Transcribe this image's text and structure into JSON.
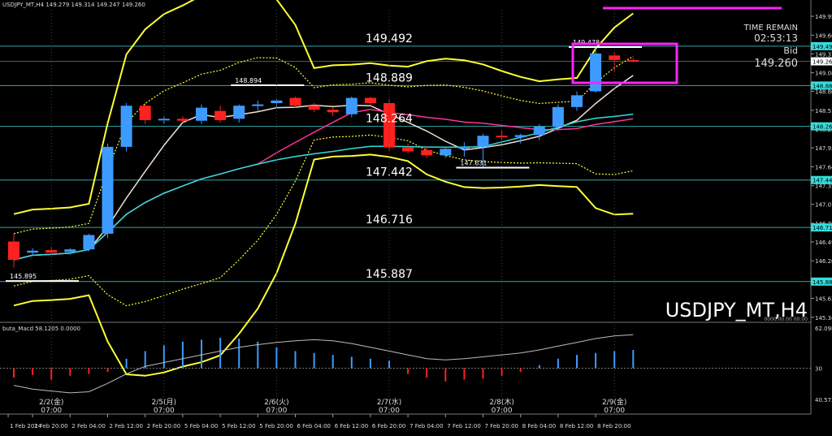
{
  "window_title": "USDJPY_MT,H4   149.279 149.314 149.247 149.260",
  "symbol_label": "USDJPY_MT,H4",
  "time_remain_label": "TIME REMAIN",
  "time_remain_value": "02:53:13",
  "bid_label": "Bid",
  "bid_value": "149.260",
  "bottom_info": "0000.00.00 00:00",
  "colors": {
    "bull": "#3d9bff",
    "bear": "#ff2020",
    "band": "#ffff33",
    "cyan_line": "#33dddd",
    "pink_ma": "#ff3399",
    "white_ma": "#f0e0d0",
    "box": "#ff22ff",
    "level_line": "#2fa8a8"
  },
  "price_axis": [
    "149.950",
    "149.660",
    "149.375",
    "149.085",
    "148.800",
    "148.510",
    "148.220",
    "147.935",
    "147.645",
    "147.355",
    "147.070",
    "146.780",
    "146.495",
    "146.205",
    "145.920",
    "145.630",
    "145.340"
  ],
  "price_tags": [
    {
      "text": "149.492",
      "price": 149.492
    },
    {
      "text": "149.260",
      "price": 149.26
    },
    {
      "text": "148.889",
      "price": 148.889
    },
    {
      "text": "148.264",
      "price": 148.264
    },
    {
      "text": "147.442",
      "price": 147.442
    },
    {
      "text": "146.716",
      "price": 146.716
    },
    {
      "text": "145.887",
      "price": 145.887
    }
  ],
  "level_labels": [
    {
      "text": "149.492",
      "price": 149.492
    },
    {
      "text": "148.889",
      "price": 148.889
    },
    {
      "text": "148.264",
      "price": 148.264
    },
    {
      "text": "147.442",
      "price": 147.442
    },
    {
      "text": "146.716",
      "price": 146.716
    },
    {
      "text": "145.887",
      "price": 145.887
    }
  ],
  "swing_labels": [
    {
      "text": "149.478",
      "price": 149.478,
      "bar": 30
    },
    {
      "text": "148.894",
      "price": 148.894,
      "bar": 12
    },
    {
      "text": "147.631",
      "price": 147.631,
      "bar": 24
    },
    {
      "text": "145.895",
      "price": 145.895,
      "bar": 0
    }
  ],
  "day_labels": [
    {
      "time": "07:00",
      "date": "2/2(金)",
      "bar": 2
    },
    {
      "time": "07:00",
      "date": "2/5(月)",
      "bar": 8
    },
    {
      "time": "07:00",
      "date": "2/6(火)",
      "bar": 14
    },
    {
      "time": "07:00",
      "date": "2/7(水)",
      "bar": 20
    },
    {
      "time": "07:00",
      "date": "2/8(木)",
      "bar": 26
    },
    {
      "time": "07:00",
      "date": "2/9(金)",
      "bar": 32
    }
  ],
  "time_axis": [
    {
      "text": "1 Feb 2024",
      "bar": -0.3
    },
    {
      "text": "1 Feb 20:00",
      "bar": 1
    },
    {
      "text": "2 Feb 04:00",
      "bar": 3
    },
    {
      "text": "2 Feb 12:00",
      "bar": 5
    },
    {
      "text": "2 Feb 20:00",
      "bar": 7
    },
    {
      "text": "5 Feb 04:00",
      "bar": 9
    },
    {
      "text": "5 Feb 12:00",
      "bar": 11
    },
    {
      "text": "5 Feb 20:00",
      "bar": 13
    },
    {
      "text": "6 Feb 04:00",
      "bar": 15
    },
    {
      "text": "6 Feb 12:00",
      "bar": 17
    },
    {
      "text": "6 Feb 20:00",
      "bar": 19
    },
    {
      "text": "7 Feb 04:00",
      "bar": 21
    },
    {
      "text": "7 Feb 12:00",
      "bar": 23
    },
    {
      "text": "7 Feb 20:00",
      "bar": 25
    },
    {
      "text": "8 Feb 04:00",
      "bar": 27
    },
    {
      "text": "8 Feb 12:00",
      "bar": 29
    },
    {
      "text": "8 Feb 20:00",
      "bar": 31
    }
  ],
  "chart_data": {
    "type": "candlestick",
    "title": "USDJPY_MT,H4",
    "ylim": [
      145.3,
      150.05
    ],
    "candles": [
      {
        "o": 146.5,
        "h": 146.62,
        "l": 146.1,
        "c": 146.22
      },
      {
        "o": 146.33,
        "h": 146.4,
        "l": 146.28,
        "c": 146.36
      },
      {
        "o": 146.37,
        "h": 146.42,
        "l": 146.3,
        "c": 146.33
      },
      {
        "o": 146.34,
        "h": 146.4,
        "l": 146.3,
        "c": 146.38
      },
      {
        "o": 146.38,
        "h": 146.62,
        "l": 146.35,
        "c": 146.6
      },
      {
        "o": 146.62,
        "h": 148.0,
        "l": 146.55,
        "c": 147.95
      },
      {
        "o": 147.95,
        "h": 148.62,
        "l": 147.88,
        "c": 148.58
      },
      {
        "o": 148.58,
        "h": 148.62,
        "l": 148.3,
        "c": 148.36
      },
      {
        "o": 148.36,
        "h": 148.42,
        "l": 148.3,
        "c": 148.38
      },
      {
        "o": 148.38,
        "h": 148.42,
        "l": 148.32,
        "c": 148.35
      },
      {
        "o": 148.35,
        "h": 148.6,
        "l": 148.3,
        "c": 148.55
      },
      {
        "o": 148.5,
        "h": 148.58,
        "l": 148.32,
        "c": 148.36
      },
      {
        "o": 148.38,
        "h": 148.6,
        "l": 148.32,
        "c": 148.58
      },
      {
        "o": 148.58,
        "h": 148.66,
        "l": 148.5,
        "c": 148.6
      },
      {
        "o": 148.62,
        "h": 148.68,
        "l": 148.55,
        "c": 148.66
      },
      {
        "o": 148.7,
        "h": 148.72,
        "l": 148.55,
        "c": 148.58
      },
      {
        "o": 148.58,
        "h": 148.62,
        "l": 148.48,
        "c": 148.52
      },
      {
        "o": 148.52,
        "h": 148.56,
        "l": 148.42,
        "c": 148.48
      },
      {
        "o": 148.45,
        "h": 148.72,
        "l": 148.4,
        "c": 148.7
      },
      {
        "o": 148.7,
        "h": 148.72,
        "l": 148.58,
        "c": 148.62
      },
      {
        "o": 148.62,
        "h": 148.68,
        "l": 147.88,
        "c": 147.94
      },
      {
        "o": 147.94,
        "h": 148.0,
        "l": 147.85,
        "c": 147.88
      },
      {
        "o": 147.9,
        "h": 147.95,
        "l": 147.78,
        "c": 147.82
      },
      {
        "o": 147.82,
        "h": 147.95,
        "l": 147.78,
        "c": 147.92
      },
      {
        "o": 147.92,
        "h": 148.02,
        "l": 147.8,
        "c": 147.95
      },
      {
        "o": 147.95,
        "h": 148.15,
        "l": 147.63,
        "c": 148.12
      },
      {
        "o": 148.12,
        "h": 148.2,
        "l": 148.05,
        "c": 148.1
      },
      {
        "o": 148.1,
        "h": 148.15,
        "l": 148.0,
        "c": 148.13
      },
      {
        "o": 148.13,
        "h": 148.3,
        "l": 148.05,
        "c": 148.26
      },
      {
        "o": 148.26,
        "h": 148.6,
        "l": 148.2,
        "c": 148.56
      },
      {
        "o": 148.56,
        "h": 148.8,
        "l": 148.5,
        "c": 148.74
      },
      {
        "o": 148.8,
        "h": 149.48,
        "l": 148.78,
        "c": 149.38
      },
      {
        "o": 149.35,
        "h": 149.4,
        "l": 149.1,
        "c": 149.28
      },
      {
        "o": 149.279,
        "h": 149.314,
        "l": 149.247,
        "c": 149.26
      }
    ],
    "macd": {
      "label": "buta_Macd 58.1205  0.0000",
      "axis": [
        "62.0987",
        "30",
        "40.5735"
      ],
      "ylim": [
        -110,
        110
      ],
      "hist": [
        -25,
        -18,
        -30,
        -20,
        -15,
        -10,
        25,
        45,
        60,
        70,
        75,
        80,
        78,
        70,
        55,
        45,
        40,
        35,
        30,
        25,
        20,
        -15,
        -25,
        -35,
        -30,
        -28,
        -20,
        -10,
        8,
        25,
        35,
        40,
        45,
        48
      ],
      "signal": [
        -45,
        -55,
        -60,
        -65,
        -62,
        -40,
        -15,
        5,
        15,
        25,
        35,
        45,
        55,
        62,
        68,
        72,
        75,
        72,
        65,
        55,
        45,
        35,
        25,
        22,
        25,
        30,
        35,
        40,
        48,
        58,
        68,
        78,
        85,
        88
      ]
    }
  }
}
